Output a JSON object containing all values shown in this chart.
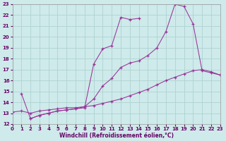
{
  "xlabel": "Windchill (Refroidissement éolien,°C)",
  "xlim": [
    0,
    23
  ],
  "ylim": [
    12,
    23
  ],
  "xticks": [
    0,
    1,
    2,
    3,
    4,
    5,
    6,
    7,
    8,
    9,
    10,
    11,
    12,
    13,
    14,
    15,
    16,
    17,
    18,
    19,
    20,
    21,
    22,
    23
  ],
  "yticks": [
    12,
    13,
    14,
    15,
    16,
    17,
    18,
    19,
    20,
    21,
    22,
    23
  ],
  "background_color": "#ceeaea",
  "grid_color": "#aacece",
  "line_color": "#993399",
  "c1_x": [
    1,
    2,
    3,
    4,
    5,
    6,
    7,
    8,
    9,
    10,
    11,
    12,
    13,
    14
  ],
  "c1_y": [
    14.8,
    12.5,
    12.8,
    13.0,
    13.2,
    13.3,
    13.4,
    13.5,
    17.5,
    18.9,
    19.2,
    21.8,
    21.6,
    21.7
  ],
  "c2_x": [
    2,
    3,
    4,
    5,
    6,
    7,
    8,
    9,
    10,
    11,
    12,
    13,
    14,
    15,
    16,
    17,
    18,
    19,
    20,
    21,
    22,
    23
  ],
  "c2_y": [
    12.5,
    12.8,
    13.0,
    13.2,
    13.3,
    13.4,
    13.6,
    14.3,
    15.5,
    16.2,
    17.2,
    17.6,
    17.8,
    18.3,
    19.0,
    20.5,
    23.0,
    22.8,
    21.2,
    16.9,
    16.7,
    16.5
  ],
  "c3_x": [
    0,
    1,
    2,
    3,
    4,
    5,
    6,
    7,
    8,
    9,
    10,
    11,
    12,
    13,
    14,
    15,
    16,
    17,
    18,
    19,
    20,
    21,
    22,
    23
  ],
  "c3_y": [
    13.1,
    13.2,
    13.0,
    13.2,
    13.3,
    13.4,
    13.5,
    13.5,
    13.6,
    13.7,
    13.9,
    14.1,
    14.3,
    14.6,
    14.9,
    15.2,
    15.6,
    16.0,
    16.3,
    16.6,
    16.9,
    17.0,
    16.8,
    16.5
  ]
}
